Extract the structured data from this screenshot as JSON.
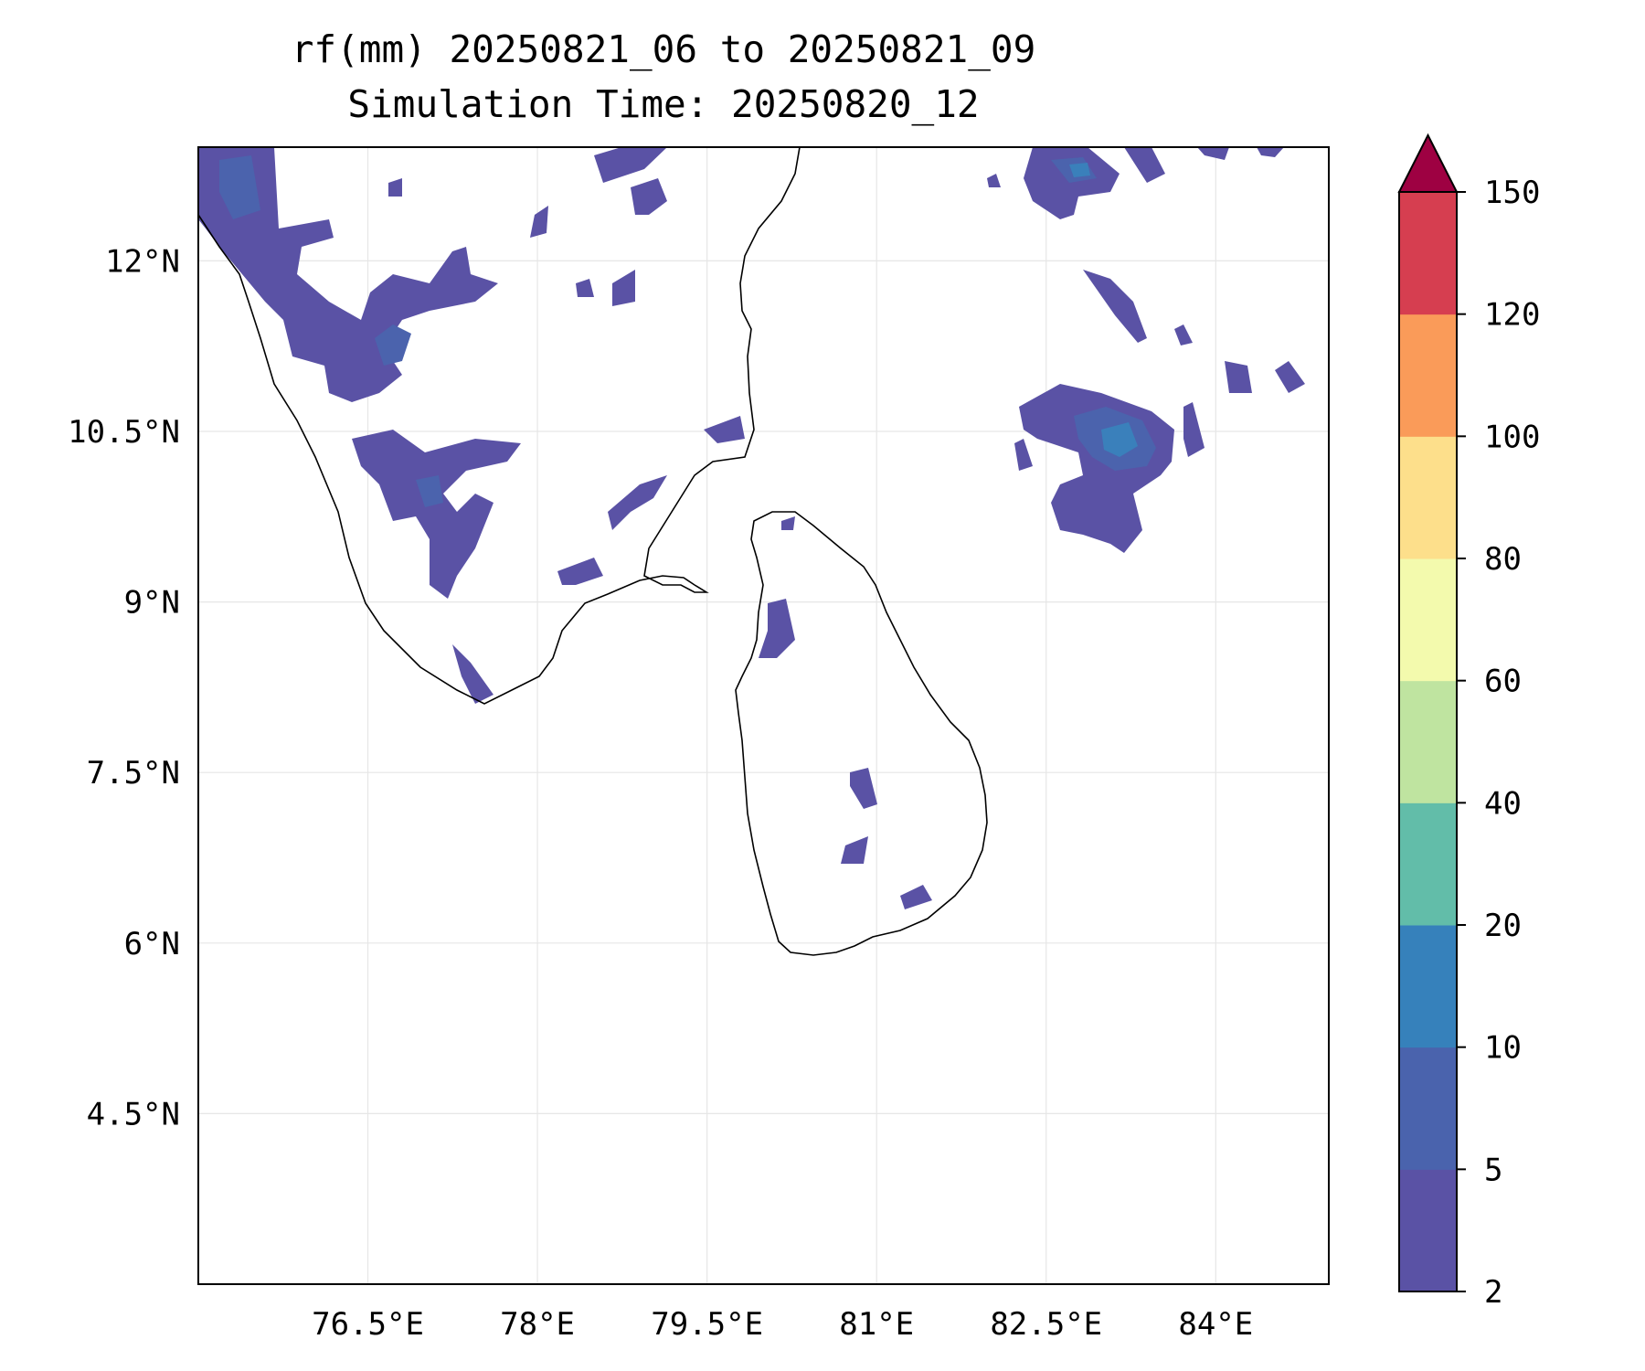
{
  "title": {
    "line1": "rf(mm) 20250821_06 to 20250821_09",
    "line2": "Simulation Time: 20250820_12"
  },
  "map": {
    "projection": "PlateCarree",
    "lon_range": [
      75.0,
      85.0
    ],
    "lat_range": [
      3.0,
      13.0
    ],
    "gridlines": true,
    "coastline_color": "#000000",
    "lat_ticks": [
      {
        "value": 12.0,
        "label": "12°N"
      },
      {
        "value": 10.5,
        "label": "10.5°N"
      },
      {
        "value": 9.0,
        "label": "9°N"
      },
      {
        "value": 7.5,
        "label": "7.5°N"
      },
      {
        "value": 6.0,
        "label": "6°N"
      },
      {
        "value": 4.5,
        "label": "4.5°N"
      }
    ],
    "lon_ticks": [
      {
        "value": 76.5,
        "label": "76.5°E"
      },
      {
        "value": 78.0,
        "label": "78°E"
      },
      {
        "value": 79.5,
        "label": "79.5°E"
      },
      {
        "value": 81.0,
        "label": "81°E"
      },
      {
        "value": 82.5,
        "label": "82.5°E"
      },
      {
        "value": 84.0,
        "label": "84°E"
      }
    ],
    "rain_color_low": "#5a52a5",
    "rain_color_mid": "#4b63ad",
    "rain_color_core": "#3a80bb"
  },
  "colorbar": {
    "levels": [
      {
        "value": 2,
        "label": "2"
      },
      {
        "value": 5,
        "label": "5"
      },
      {
        "value": 10,
        "label": "10"
      },
      {
        "value": 20,
        "label": "20"
      },
      {
        "value": 40,
        "label": "40"
      },
      {
        "value": 60,
        "label": "60"
      },
      {
        "value": 80,
        "label": "80"
      },
      {
        "value": 100,
        "label": "100"
      },
      {
        "value": 120,
        "label": "120"
      },
      {
        "value": 150,
        "label": "150"
      }
    ],
    "colors": [
      "#5a52a5",
      "#4a63ad",
      "#3681bb",
      "#62bda9",
      "#bfe4a0",
      "#f3faad",
      "#fddf8b",
      "#fa9b59",
      "#d63e50"
    ],
    "extend_color": "#9e0142",
    "extend": "max"
  }
}
